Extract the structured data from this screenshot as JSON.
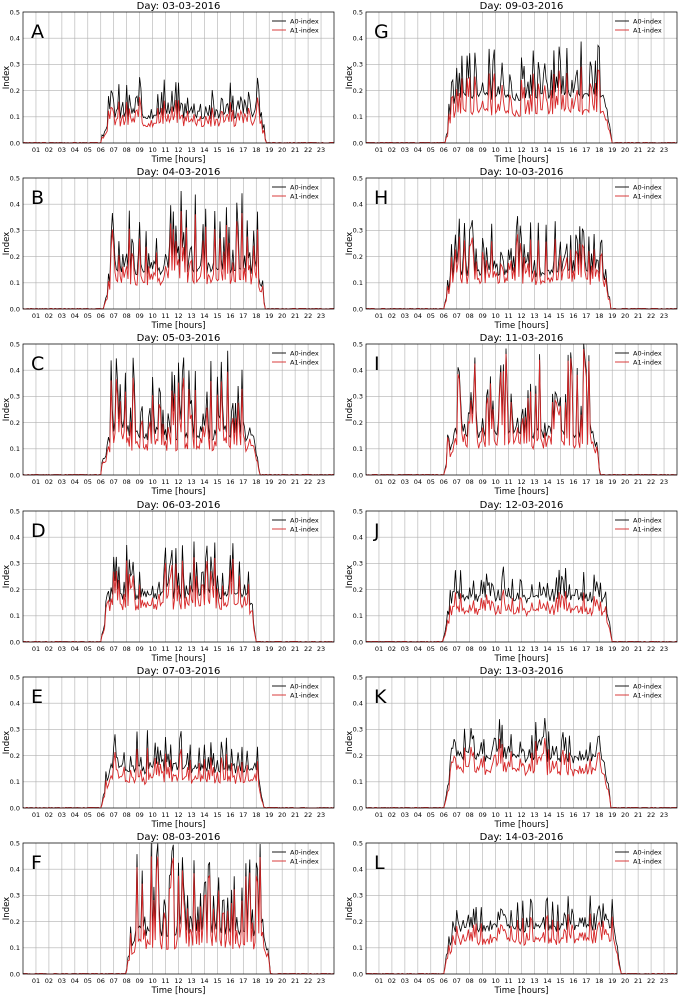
{
  "colors": {
    "a0": "#000000",
    "a1": "#d62728"
  },
  "chart_data": [
    {
      "letter": "A",
      "title": "Day: 03-03-2016",
      "type": "line",
      "xlabel": "Time [hours]",
      "ylabel": "Index",
      "xlim": [
        0,
        24
      ],
      "ylim": [
        0,
        0.5
      ],
      "x_ticks": [
        "01",
        "02",
        "03",
        "04",
        "05",
        "06",
        "07",
        "08",
        "09",
        "10",
        "11",
        "12",
        "13",
        "14",
        "15",
        "16",
        "17",
        "18",
        "19",
        "20",
        "21",
        "22",
        "23"
      ],
      "y_ticks": [
        "0.0",
        "0.1",
        "0.2",
        "0.3",
        "0.4",
        "0.5"
      ],
      "series": [
        {
          "name": "A0-index",
          "start": 6.0,
          "end": 18.8,
          "peak": 0.24,
          "base": 0.09,
          "seed": 3
        },
        {
          "name": "A1-index",
          "start": 6.0,
          "end": 18.8,
          "peak": 0.16,
          "base": 0.06,
          "seed": 3
        }
      ]
    },
    {
      "letter": "B",
      "title": "Day: 04-03-2016",
      "type": "line",
      "xlabel": "Time [hours]",
      "ylabel": "Index",
      "xlim": [
        0,
        24
      ],
      "ylim": [
        0,
        0.5
      ],
      "x_ticks": [
        "01",
        "02",
        "03",
        "04",
        "05",
        "06",
        "07",
        "08",
        "09",
        "10",
        "11",
        "12",
        "13",
        "14",
        "15",
        "16",
        "17",
        "18",
        "19",
        "20",
        "21",
        "22",
        "23"
      ],
      "y_ticks": [
        "0.0",
        "0.1",
        "0.2",
        "0.3",
        "0.4",
        "0.5"
      ],
      "series": [
        {
          "name": "A0-index",
          "start": 6.2,
          "end": 18.7,
          "peak": 0.46,
          "base": 0.13,
          "seed": 7
        },
        {
          "name": "A1-index",
          "start": 6.2,
          "end": 18.7,
          "peak": 0.38,
          "base": 0.09,
          "seed": 7
        }
      ]
    },
    {
      "letter": "C",
      "title": "Day: 05-03-2016",
      "type": "line",
      "xlabel": "Time [hours]",
      "ylabel": "Index",
      "xlim": [
        0,
        24
      ],
      "ylim": [
        0,
        0.5
      ],
      "x_ticks": [
        "01",
        "02",
        "03",
        "04",
        "05",
        "06",
        "07",
        "08",
        "09",
        "10",
        "11",
        "12",
        "13",
        "14",
        "15",
        "16",
        "17",
        "18",
        "19",
        "20",
        "21",
        "22",
        "23"
      ],
      "y_ticks": [
        "0.0",
        "0.1",
        "0.2",
        "0.3",
        "0.4",
        "0.5"
      ],
      "series": [
        {
          "name": "A0-index",
          "start": 6.0,
          "end": 18.3,
          "peak": 0.45,
          "base": 0.13,
          "seed": 11
        },
        {
          "name": "A1-index",
          "start": 6.0,
          "end": 18.3,
          "peak": 0.37,
          "base": 0.09,
          "seed": 11
        }
      ]
    },
    {
      "letter": "D",
      "title": "Day: 06-03-2016",
      "type": "line",
      "xlabel": "Time [hours]",
      "ylabel": "Index",
      "xlim": [
        0,
        24
      ],
      "ylim": [
        0,
        0.5
      ],
      "x_ticks": [
        "01",
        "02",
        "03",
        "04",
        "05",
        "06",
        "07",
        "08",
        "09",
        "10",
        "11",
        "12",
        "13",
        "14",
        "15",
        "16",
        "17",
        "18",
        "19",
        "20",
        "21",
        "22",
        "23"
      ],
      "y_ticks": [
        "0.0",
        "0.1",
        "0.2",
        "0.3",
        "0.4",
        "0.5"
      ],
      "series": [
        {
          "name": "A0-index",
          "start": 6.0,
          "end": 18.0,
          "peak": 0.36,
          "base": 0.16,
          "seed": 13
        },
        {
          "name": "A1-index",
          "start": 6.0,
          "end": 18.0,
          "peak": 0.3,
          "base": 0.12,
          "seed": 13
        }
      ]
    },
    {
      "letter": "E",
      "title": "Day: 07-03-2016",
      "type": "line",
      "xlabel": "Time [hours]",
      "ylabel": "Index",
      "xlim": [
        0,
        24
      ],
      "ylim": [
        0,
        0.5
      ],
      "x_ticks": [
        "01",
        "02",
        "03",
        "04",
        "05",
        "06",
        "07",
        "08",
        "09",
        "10",
        "11",
        "12",
        "13",
        "14",
        "15",
        "16",
        "17",
        "18",
        "19",
        "20",
        "21",
        "22",
        "23"
      ],
      "y_ticks": [
        "0.0",
        "0.1",
        "0.2",
        "0.3",
        "0.4",
        "0.5"
      ],
      "series": [
        {
          "name": "A0-index",
          "start": 6.0,
          "end": 18.6,
          "peak": 0.29,
          "base": 0.13,
          "seed": 17
        },
        {
          "name": "A1-index",
          "start": 6.0,
          "end": 18.6,
          "peak": 0.22,
          "base": 0.09,
          "seed": 17
        }
      ]
    },
    {
      "letter": "F",
      "title": "Day: 08-03-2016",
      "type": "line",
      "xlabel": "Time [hours]",
      "ylabel": "Index",
      "xlim": [
        0,
        24
      ],
      "ylim": [
        0,
        0.5
      ],
      "x_ticks": [
        "01",
        "02",
        "03",
        "04",
        "05",
        "06",
        "07",
        "08",
        "09",
        "10",
        "11",
        "12",
        "13",
        "14",
        "15",
        "16",
        "17",
        "18",
        "19",
        "20",
        "21",
        "22",
        "23"
      ],
      "y_ticks": [
        "0.0",
        "0.1",
        "0.2",
        "0.3",
        "0.4",
        "0.5"
      ],
      "series": [
        {
          "name": "A0-index",
          "start": 7.9,
          "end": 19.1,
          "peak": 0.5,
          "base": 0.14,
          "seed": 19
        },
        {
          "name": "A1-index",
          "start": 7.9,
          "end": 19.1,
          "peak": 0.45,
          "base": 0.09,
          "seed": 19
        }
      ]
    },
    {
      "letter": "G",
      "title": "Day: 09-03-2016",
      "type": "line",
      "xlabel": "Time [hours]",
      "ylabel": "Index",
      "xlim": [
        0,
        24
      ],
      "ylim": [
        0,
        0.5
      ],
      "x_ticks": [
        "01",
        "02",
        "03",
        "04",
        "05",
        "06",
        "07",
        "08",
        "09",
        "10",
        "11",
        "12",
        "13",
        "14",
        "15",
        "16",
        "17",
        "18",
        "19",
        "20",
        "21",
        "22",
        "23"
      ],
      "y_ticks": [
        "0.0",
        "0.1",
        "0.2",
        "0.3",
        "0.4",
        "0.5"
      ],
      "series": [
        {
          "name": "A0-index",
          "start": 6.1,
          "end": 19.0,
          "peak": 0.39,
          "base": 0.16,
          "seed": 23
        },
        {
          "name": "A1-index",
          "start": 6.1,
          "end": 19.0,
          "peak": 0.29,
          "base": 0.1,
          "seed": 23
        }
      ]
    },
    {
      "letter": "H",
      "title": "Day: 10-03-2016",
      "type": "line",
      "xlabel": "Time [hours]",
      "ylabel": "Index",
      "xlim": [
        0,
        24
      ],
      "ylim": [
        0,
        0.5
      ],
      "x_ticks": [
        "01",
        "02",
        "03",
        "04",
        "05",
        "06",
        "07",
        "08",
        "09",
        "10",
        "11",
        "12",
        "13",
        "14",
        "15",
        "16",
        "17",
        "18",
        "19",
        "20",
        "21",
        "22",
        "23"
      ],
      "y_ticks": [
        "0.0",
        "0.1",
        "0.2",
        "0.3",
        "0.4",
        "0.5"
      ],
      "series": [
        {
          "name": "A0-index",
          "start": 6.0,
          "end": 18.9,
          "peak": 0.33,
          "base": 0.12,
          "seed": 29
        },
        {
          "name": "A1-index",
          "start": 6.0,
          "end": 18.9,
          "peak": 0.26,
          "base": 0.09,
          "seed": 29
        }
      ]
    },
    {
      "letter": "I",
      "title": "Day: 11-03-2016",
      "type": "line",
      "xlabel": "Time [hours]",
      "ylabel": "Index",
      "xlim": [
        0,
        24
      ],
      "ylim": [
        0,
        0.5
      ],
      "x_ticks": [
        "01",
        "02",
        "03",
        "04",
        "05",
        "06",
        "07",
        "08",
        "09",
        "10",
        "11",
        "12",
        "13",
        "14",
        "15",
        "16",
        "17",
        "18",
        "19",
        "20",
        "21",
        "22",
        "23"
      ],
      "y_ticks": [
        "0.0",
        "0.1",
        "0.2",
        "0.3",
        "0.4",
        "0.5"
      ],
      "series": [
        {
          "name": "A0-index",
          "start": 6.0,
          "end": 18.1,
          "peak": 0.49,
          "base": 0.14,
          "seed": 31
        },
        {
          "name": "A1-index",
          "start": 6.0,
          "end": 18.1,
          "peak": 0.47,
          "base": 0.1,
          "seed": 31
        }
      ]
    },
    {
      "letter": "J",
      "title": "Day: 12-03-2016",
      "type": "line",
      "xlabel": "Time [hours]",
      "ylabel": "Index",
      "xlim": [
        0,
        24
      ],
      "ylim": [
        0,
        0.5
      ],
      "x_ticks": [
        "01",
        "02",
        "03",
        "04",
        "05",
        "06",
        "07",
        "08",
        "09",
        "10",
        "11",
        "12",
        "13",
        "14",
        "15",
        "16",
        "17",
        "18",
        "19",
        "20",
        "21",
        "22",
        "23"
      ],
      "y_ticks": [
        "0.0",
        "0.1",
        "0.2",
        "0.3",
        "0.4",
        "0.5"
      ],
      "series": [
        {
          "name": "A0-index",
          "start": 5.9,
          "end": 19.0,
          "peak": 0.28,
          "base": 0.15,
          "seed": 37
        },
        {
          "name": "A1-index",
          "start": 5.9,
          "end": 19.0,
          "peak": 0.19,
          "base": 0.1,
          "seed": 37
        }
      ]
    },
    {
      "letter": "K",
      "title": "Day: 13-03-2016",
      "type": "line",
      "xlabel": "Time [hours]",
      "ylabel": "Index",
      "xlim": [
        0,
        24
      ],
      "ylim": [
        0,
        0.5
      ],
      "x_ticks": [
        "01",
        "02",
        "03",
        "04",
        "05",
        "06",
        "07",
        "08",
        "09",
        "10",
        "11",
        "12",
        "13",
        "14",
        "15",
        "16",
        "17",
        "18",
        "19",
        "20",
        "21",
        "22",
        "23"
      ],
      "y_ticks": [
        "0.0",
        "0.1",
        "0.2",
        "0.3",
        "0.4",
        "0.5"
      ],
      "series": [
        {
          "name": "A0-index",
          "start": 6.0,
          "end": 18.9,
          "peak": 0.34,
          "base": 0.17,
          "seed": 41
        },
        {
          "name": "A1-index",
          "start": 6.0,
          "end": 18.9,
          "peak": 0.26,
          "base": 0.12,
          "seed": 41
        }
      ]
    },
    {
      "letter": "L",
      "title": "Day: 14-03-2016",
      "type": "line",
      "xlabel": "Time [hours]",
      "ylabel": "Index",
      "xlim": [
        0,
        24
      ],
      "ylim": [
        0,
        0.5
      ],
      "x_ticks": [
        "01",
        "02",
        "03",
        "04",
        "05",
        "06",
        "07",
        "08",
        "09",
        "10",
        "11",
        "12",
        "13",
        "14",
        "15",
        "16",
        "17",
        "18",
        "19",
        "20",
        "21",
        "22",
        "23"
      ],
      "y_ticks": [
        "0.0",
        "0.1",
        "0.2",
        "0.3",
        "0.4",
        "0.5"
      ],
      "series": [
        {
          "name": "A0-index",
          "start": 6.0,
          "end": 19.7,
          "peak": 0.28,
          "base": 0.16,
          "seed": 43
        },
        {
          "name": "A1-index",
          "start": 6.0,
          "end": 19.7,
          "peak": 0.21,
          "base": 0.11,
          "seed": 43
        }
      ]
    }
  ]
}
